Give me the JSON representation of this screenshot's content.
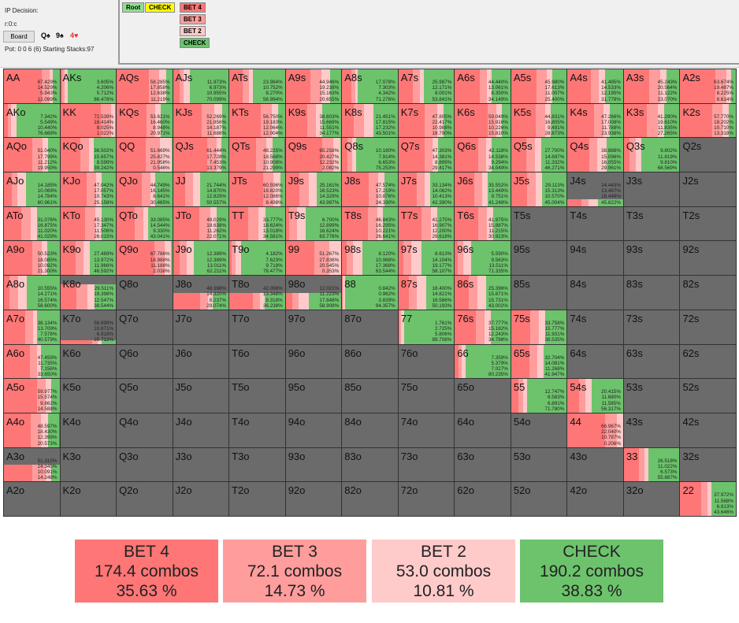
{
  "header": {
    "title": "IP Decision:",
    "path": "r:0:c",
    "board_button": "Board",
    "board_cards": [
      {
        "text": "Q♠",
        "color": "#111"
      },
      {
        "text": "9♠",
        "color": "#111"
      },
      {
        "text": "4♥",
        "color": "#e53030"
      }
    ],
    "pot_info": "Pot: 0 0 6 (6) Starting Stacks:97"
  },
  "tree": {
    "root": "Root",
    "check": "CHECK",
    "bet4": "BET 4",
    "bet3": "BET 3",
    "bet2": "BET 2",
    "check2": "CHECK"
  },
  "colors": {
    "bet4": "#ff7676",
    "bet3": "#ff9d9d",
    "bet2": "#ffcaca",
    "check": "#6cc36c",
    "empty": "#6b6b6b"
  },
  "grid": [
    [
      {
        "h": "AA",
        "v": [
          "67.429%",
          "14.529%",
          "5.943%",
          "12.099%"
        ]
      },
      {
        "h": "AKs",
        "v": [
          "3.605%",
          "4.206%",
          "5.712%",
          "86.478%"
        ]
      },
      {
        "h": "AQs",
        "v": [
          "58.285%",
          "17.858%",
          "12.638%",
          "11.219%"
        ]
      },
      {
        "h": "AJs",
        "v": [
          "11.973%",
          "6.973%",
          "10.955%",
          "70.099%"
        ]
      },
      {
        "h": "ATs",
        "v": [
          "23.984%",
          "10.752%",
          "8.270%",
          "56.994%"
        ]
      },
      {
        "h": "A9s",
        "v": [
          "44.946%",
          "19.238%",
          "15.163%",
          "20.655%"
        ]
      },
      {
        "h": "A8s",
        "v": [
          "17.078%",
          "7.303%",
          "4.342%",
          "71.276%"
        ]
      },
      {
        "h": "A7s",
        "v": [
          "25.987%",
          "12.171%",
          "8.001%",
          "53.841%"
        ]
      },
      {
        "h": "A6s",
        "v": [
          "44.440%",
          "13.061%",
          "8.350%",
          "34.149%"
        ]
      },
      {
        "h": "A5s",
        "v": [
          "45.980%",
          "17.613%",
          "11.007%",
          "25.400%"
        ]
      },
      {
        "h": "A4s",
        "v": [
          "41.495%",
          "14.533%",
          "12.195%",
          "31.778%"
        ]
      },
      {
        "h": "A3s",
        "v": [
          "45.243%",
          "20.564%",
          "11.122%",
          "23.070%"
        ]
      },
      {
        "h": "A2s",
        "v": [
          "63.674%",
          "19.487%",
          "8.225%",
          "8.614%"
        ]
      }
    ],
    [
      {
        "h": "AKo",
        "v": [
          "7.342%",
          "5.549%",
          "10.440%",
          "76.669%"
        ]
      },
      {
        "h": "KK",
        "v": [
          "72.539%",
          "18.414%",
          "8.025%",
          "1.022%"
        ]
      },
      {
        "h": "KQs",
        "v": [
          "53.621%",
          "16.460%",
          "8.948%",
          "20.971%"
        ]
      },
      {
        "h": "KJs",
        "v": [
          "52.269%",
          "21.856%",
          "14.187%",
          "11.688%"
        ]
      },
      {
        "h": "KTs",
        "v": [
          "56.750%",
          "19.183%",
          "12.064%",
          "12.004%"
        ]
      },
      {
        "h": "K9s",
        "v": [
          "38.603%",
          "15.669%",
          "11.551%",
          "34.177%"
        ]
      },
      {
        "h": "K8s",
        "v": [
          "21.451%",
          "17.815%",
          "17.232%",
          "43.501%"
        ]
      },
      {
        "h": "K7s",
        "v": [
          "47.805%",
          "22.417%",
          "10.988%",
          "18.790%"
        ]
      },
      {
        "h": "K6s",
        "v": [
          "59.049%",
          "15.916%",
          "10.226%",
          "15.810%"
        ]
      },
      {
        "h": "K5s",
        "v": [
          "44.831%",
          "16.805%",
          "9.491%",
          "28.873%"
        ]
      },
      {
        "h": "K4s",
        "v": [
          "47.266%",
          "17.008%",
          "11.788%",
          "23.938%"
        ]
      },
      {
        "h": "K3s",
        "v": [
          "41.290%",
          "19.610%",
          "11.835%",
          "27.265%"
        ]
      },
      {
        "h": "K2s",
        "v": [
          "57.770%",
          "18.202%",
          "10.710%",
          "13.318%"
        ]
      }
    ],
    [
      {
        "h": "AQo",
        "v": [
          "51.040%",
          "17.799%",
          "11.212%",
          "19.950%"
        ]
      },
      {
        "h": "KQo",
        "v": [
          "36.502%",
          "15.657%",
          "8.599%",
          "39.242%"
        ]
      },
      {
        "h": "QQ",
        "v": [
          "51.669%",
          "25.827%",
          "21.958%",
          "0.546%"
        ]
      },
      {
        "h": "QJs",
        "v": [
          "61.444%",
          "17.728%",
          "7.453%",
          "13.379%"
        ]
      },
      {
        "h": "QTs",
        "v": [
          "48.225%",
          "18.568%",
          "10.908%",
          "21.299%"
        ]
      },
      {
        "h": "Q9s",
        "v": [
          "65.258%",
          "20.427%",
          "12.232%",
          "2.082%"
        ]
      },
      {
        "h": "Q8s",
        "v": [
          "10.180%",
          "7.914%",
          "6.653%",
          "75.253%"
        ]
      },
      {
        "h": "Q7s",
        "v": [
          "47.303%",
          "14.381%",
          "8.899%",
          "29.417%"
        ]
      },
      {
        "h": "Q6s",
        "v": [
          "42.118%",
          "14.538%",
          "9.294%",
          "34.049%"
        ]
      },
      {
        "h": "Q5s",
        "v": [
          "27.700%",
          "14.697%",
          "11.332%",
          "46.271%"
        ]
      },
      {
        "h": "Q4s",
        "v": [
          "38.888%",
          "15.096%",
          "16.055%",
          "29.961%"
        ]
      },
      {
        "h": "Q3s",
        "v": [
          "9.802%",
          "11.819%",
          "9.810%",
          "68.569%"
        ]
      },
      {
        "h": "Q2s"
      }
    ],
    [
      {
        "h": "AJo",
        "v": [
          "14.185%",
          "10.069%",
          "14.784%",
          "60.961%"
        ]
      },
      {
        "h": "KJo",
        "v": [
          "47.042%",
          "17.057%",
          "10.743%",
          "25.158%"
        ]
      },
      {
        "h": "QJo",
        "v": [
          "44.749%",
          "16.145%",
          "8.641%",
          "30.465%"
        ]
      },
      {
        "h": "JJ",
        "v": [
          "21.744%",
          "14.870%",
          "12.829%",
          "50.557%"
        ]
      },
      {
        "h": "JTs",
        "v": [
          "60.596%",
          "18.820%",
          "12.086%",
          "8.498%"
        ]
      },
      {
        "h": "J9s",
        "v": [
          "25.161%",
          "16.523%",
          "14.329%",
          "43.987%"
        ]
      },
      {
        "h": "J8s",
        "v": [
          "47.574%",
          "17.219%",
          "10.876%",
          "24.330%"
        ]
      },
      {
        "h": "J7s",
        "v": [
          "33.134%",
          "14.062%",
          "10.413%",
          "42.390%"
        ]
      },
      {
        "h": "J6s",
        "v": [
          "35.552%",
          "13.449%",
          "9.751%",
          "41.248%"
        ]
      },
      {
        "h": "J5s",
        "v": [
          "29.113%",
          "15.313%",
          "10.570%",
          "45.004%"
        ]
      },
      {
        "h": "J4s",
        "v": [
          "24.443%",
          "13.487%",
          "16.448%",
          "45.622%"
        ],
        "f": 0.2
      },
      {
        "h": "J3s"
      },
      {
        "h": "J2s"
      }
    ],
    [
      {
        "h": "ATo",
        "v": [
          "31.076%",
          "16.875%",
          "11.020%",
          "41.029%"
        ]
      },
      {
        "h": "KTo",
        "v": [
          "45.130%",
          "17.347%",
          "11.508%",
          "26.015%"
        ]
      },
      {
        "h": "QTo",
        "v": [
          "33.085%",
          "14.544%",
          "9.330%",
          "43.041%"
        ]
      },
      {
        "h": "JTo",
        "v": [
          "48.029%",
          "18.638%",
          "11.262%",
          "22.071%"
        ]
      },
      {
        "h": "TT",
        "v": [
          "33.777%",
          "18.624%",
          "13.018%",
          "34.581%"
        ]
      },
      {
        "h": "T9s",
        "v": [
          "6.700%",
          "12.899%",
          "16.624%",
          "63.776%"
        ]
      },
      {
        "h": "T8s",
        "v": [
          "46.843%",
          "16.295%",
          "10.221%",
          "26.641%"
        ]
      },
      {
        "h": "T7s",
        "v": [
          "41.275%",
          "16.907%",
          "12.200%",
          "29.618%"
        ]
      },
      {
        "h": "T6s",
        "v": [
          "41.975%",
          "15.887%",
          "11.215%",
          "30.923%"
        ]
      },
      {
        "h": "T5s"
      },
      {
        "h": "T4s"
      },
      {
        "h": "T3s"
      },
      {
        "h": "T2s"
      }
    ],
    [
      {
        "h": "A9o",
        "v": [
          "50.523%",
          "18.085%",
          "10.092%",
          "21.300%"
        ]
      },
      {
        "h": "K9o",
        "v": [
          "27.469%",
          "13.972%",
          "11.966%",
          "46.592%"
        ]
      },
      {
        "h": "Q9o",
        "v": [
          "67.786%",
          "18.988%",
          "11.188%",
          "2.038%"
        ]
      },
      {
        "h": "J9o",
        "v": [
          "12.389%",
          "12.389%",
          "13.011%",
          "62.211%"
        ]
      },
      {
        "h": "T9o",
        "v": [
          "4.182%",
          "7.623%",
          "9.718%",
          "78.477%"
        ]
      },
      {
        "h": "99",
        "v": [
          "51.267%",
          "27.836%",
          "20.545%",
          "0.353%"
        ]
      },
      {
        "h": "98s",
        "v": [
          "8.120%",
          "10.968%",
          "17.368%",
          "63.544%"
        ]
      },
      {
        "h": "97s",
        "v": [
          "8.613%",
          "14.104%",
          "19.177%",
          "58.107%"
        ]
      },
      {
        "h": "96s",
        "v": [
          "5.590%",
          "9.563%",
          "13.511%",
          "71.335%"
        ]
      },
      {
        "h": "95s"
      },
      {
        "h": "94s"
      },
      {
        "h": "93s"
      },
      {
        "h": "92s"
      }
    ],
    [
      {
        "h": "A8o",
        "v": [
          "10.555%",
          "14.271%",
          "16.574%",
          "58.600%"
        ]
      },
      {
        "h": "K8o",
        "v": [
          "29.511%",
          "19.398%",
          "12.547%",
          "38.544%"
        ],
        "f": 0.75
      },
      {
        "h": "Q8o"
      },
      {
        "h": "J8o",
        "v": [
          "48.368%",
          "14.320%",
          "8.237%",
          "29.074%"
        ],
        "f": 0.5
      },
      {
        "h": "T8o",
        "v": [
          "42.096%",
          "13.348%",
          "8.318%",
          "36.238%"
        ],
        "f": 0.5
      },
      {
        "h": "98o",
        "v": [
          "12.021%",
          "11.223%",
          "17.848%",
          "58.908%"
        ],
        "f": 0.5
      },
      {
        "h": "88",
        "v": [
          "0.842%",
          "0.962%",
          "3.839%",
          "94.357%"
        ]
      },
      {
        "h": "87s",
        "v": [
          "18.400%",
          "14.821%",
          "16.586%",
          "50.193%"
        ]
      },
      {
        "h": "86s",
        "v": [
          "25.396%",
          "15.871%",
          "15.731%",
          "43.002%"
        ]
      },
      {
        "h": "85s"
      },
      {
        "h": "84s"
      },
      {
        "h": "83s"
      },
      {
        "h": "82s"
      }
    ],
    [
      {
        "h": "A7o",
        "v": [
          "38.134%",
          "13.709%",
          "7.578%",
          "40.579%"
        ]
      },
      {
        "h": "K7o",
        "v": [
          "56.699%",
          "10.671%",
          "6.918%",
          "25.712%"
        ],
        "f": 0.1
      },
      {
        "h": "Q7o"
      },
      {
        "h": "J7o"
      },
      {
        "h": "T7o"
      },
      {
        "h": "97o"
      },
      {
        "h": "87o"
      },
      {
        "h": "77",
        "v": [
          "1.761%",
          "2.725%",
          "5.806%",
          "89.708%"
        ]
      },
      {
        "h": "76s",
        "v": [
          "37.777%",
          "15.182%",
          "12.243%",
          "34.798%"
        ]
      },
      {
        "h": "75s",
        "v": [
          "33.758%",
          "15.777%",
          "11.931%",
          "38.535%"
        ]
      },
      {
        "h": "74s"
      },
      {
        "h": "73s"
      },
      {
        "h": "72s"
      }
    ],
    [
      {
        "h": "A6o",
        "v": [
          "47.459%",
          "11.735%",
          "7.156%",
          "33.650%"
        ]
      },
      {
        "h": "K6o"
      },
      {
        "h": "Q6o"
      },
      {
        "h": "J6o"
      },
      {
        "h": "T6o"
      },
      {
        "h": "96o"
      },
      {
        "h": "86o"
      },
      {
        "h": "76o"
      },
      {
        "h": "66",
        "v": [
          "7.359%",
          "5.379%",
          "7.027%",
          "80.235%"
        ]
      },
      {
        "h": "65s",
        "v": [
          "32.704%",
          "14.081%",
          "11.268%",
          "41.947%"
        ]
      },
      {
        "h": "64s"
      },
      {
        "h": "63s"
      },
      {
        "h": "62s"
      }
    ],
    [
      {
        "h": "A5o",
        "v": [
          "59.977%",
          "15.574%",
          "9.862%",
          "14.588%"
        ]
      },
      {
        "h": "K5o"
      },
      {
        "h": "Q5o"
      },
      {
        "h": "J5o"
      },
      {
        "h": "T5o"
      },
      {
        "h": "95o"
      },
      {
        "h": "85o"
      },
      {
        "h": "75o"
      },
      {
        "h": "65o"
      },
      {
        "h": "55",
        "v": [
          "12.747%",
          "8.583%",
          "6.891%",
          "71.780%"
        ]
      },
      {
        "h": "54s",
        "v": [
          "20.415%",
          "11.680%",
          "11.585%",
          "56.317%"
        ]
      },
      {
        "h": "53s"
      },
      {
        "h": "52s"
      }
    ],
    [
      {
        "h": "A4o",
        "v": [
          "48.597%",
          "18.430%",
          "12.399%",
          "20.573%"
        ]
      },
      {
        "h": "K4o"
      },
      {
        "h": "Q4o"
      },
      {
        "h": "J4o"
      },
      {
        "h": "T4o"
      },
      {
        "h": "94o"
      },
      {
        "h": "84o"
      },
      {
        "h": "74o"
      },
      {
        "h": "64o"
      },
      {
        "h": "54o"
      },
      {
        "h": "44",
        "v": [
          "66.967%",
          "22.040%",
          "10.787%",
          "0.206%"
        ]
      },
      {
        "h": "43s"
      },
      {
        "h": "42s"
      }
    ],
    [
      {
        "h": "A3o",
        "v": [
          "51.315%",
          "24.345%",
          "10.091%",
          "14.248%"
        ],
        "f": 0.5
      },
      {
        "h": "K3o"
      },
      {
        "h": "Q3o"
      },
      {
        "h": "J3o"
      },
      {
        "h": "T3o"
      },
      {
        "h": "93o"
      },
      {
        "h": "83o"
      },
      {
        "h": "73o"
      },
      {
        "h": "63o"
      },
      {
        "h": "53o"
      },
      {
        "h": "43o"
      },
      {
        "h": "33",
        "v": [
          "26.518%",
          "11.022%",
          "6.573%",
          "55.887%"
        ]
      },
      {
        "h": "32s"
      }
    ],
    [
      {
        "h": "A2o"
      },
      {
        "h": "K2o"
      },
      {
        "h": "Q2o"
      },
      {
        "h": "J2o"
      },
      {
        "h": "T2o"
      },
      {
        "h": "92o"
      },
      {
        "h": "82o"
      },
      {
        "h": "72o"
      },
      {
        "h": "62o"
      },
      {
        "h": "52o"
      },
      {
        "h": "42o"
      },
      {
        "h": "32o"
      },
      {
        "h": "22",
        "v": [
          "37.972%",
          "11.568%",
          "6.813%",
          "43.646%"
        ]
      }
    ]
  ],
  "summary": [
    {
      "action": "BET 4",
      "combos": "174.4 combos",
      "percent": "35.63 %"
    },
    {
      "action": "BET 3",
      "combos": "72.1 combos",
      "percent": "14.73 %"
    },
    {
      "action": "BET 2",
      "combos": "53.0 combos",
      "percent": "10.81 %"
    },
    {
      "action": "CHECK",
      "combos": "190.2 combos",
      "percent": "38.83 %"
    }
  ]
}
